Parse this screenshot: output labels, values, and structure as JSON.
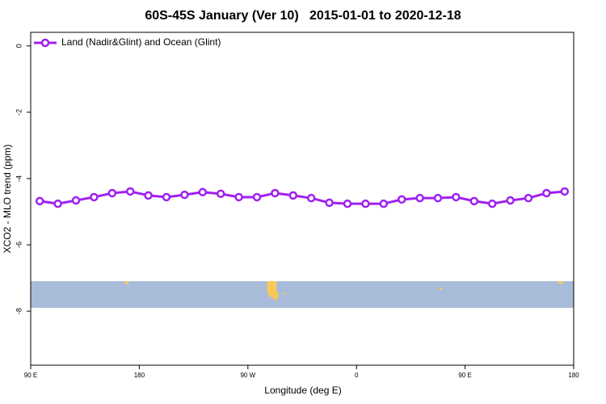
{
  "chart_data": {
    "type": "line",
    "title": "60S-45S January (Ver 10)   2015-01-01 to 2020-12-18",
    "x_label": "Longitude (deg E)",
    "y_label": "XCO2 - MLO trend (ppm)",
    "legend_position": "top-left",
    "x": [
      97.5,
      112.5,
      127.5,
      142.5,
      157.5,
      172.5,
      187.5,
      202.5,
      217.5,
      232.5,
      247.5,
      262.5,
      277.5,
      292.5,
      307.5,
      322.5,
      337.5,
      352.5,
      367.5,
      382.5,
      397.5,
      412.5,
      427.5,
      442.5,
      457.5,
      472.5,
      487.5,
      502.5,
      517.5,
      532.5
    ],
    "series": [
      {
        "name": "Land (Nadir&Glint) and Ocean (Glint)",
        "color": "#a020f0",
        "values": [
          -4.68,
          -4.76,
          -4.66,
          -4.56,
          -4.44,
          -4.39,
          -4.51,
          -4.56,
          -4.49,
          -4.41,
          -4.46,
          -4.56,
          -4.56,
          -4.44,
          -4.51,
          -4.59,
          -4.73,
          -4.76,
          -4.76,
          -4.76,
          -4.63,
          -4.59,
          -4.59,
          -4.56,
          -4.68,
          -4.76,
          -4.66,
          -4.59,
          -4.44,
          -4.39
        ]
      }
    ],
    "xlim": [
      90,
      540
    ],
    "xticks": [
      {
        "value": 90,
        "label": "90 E"
      },
      {
        "value": 180,
        "label": "180"
      },
      {
        "value": 270,
        "label": "90 W"
      },
      {
        "value": 360,
        "label": "0"
      },
      {
        "value": 450,
        "label": "90 E"
      },
      {
        "value": 540,
        "label": "180"
      }
    ],
    "ylim": [
      -9.63,
      0.41
    ],
    "yticks": [
      0,
      -2,
      -4,
      -6,
      -8
    ]
  }
}
